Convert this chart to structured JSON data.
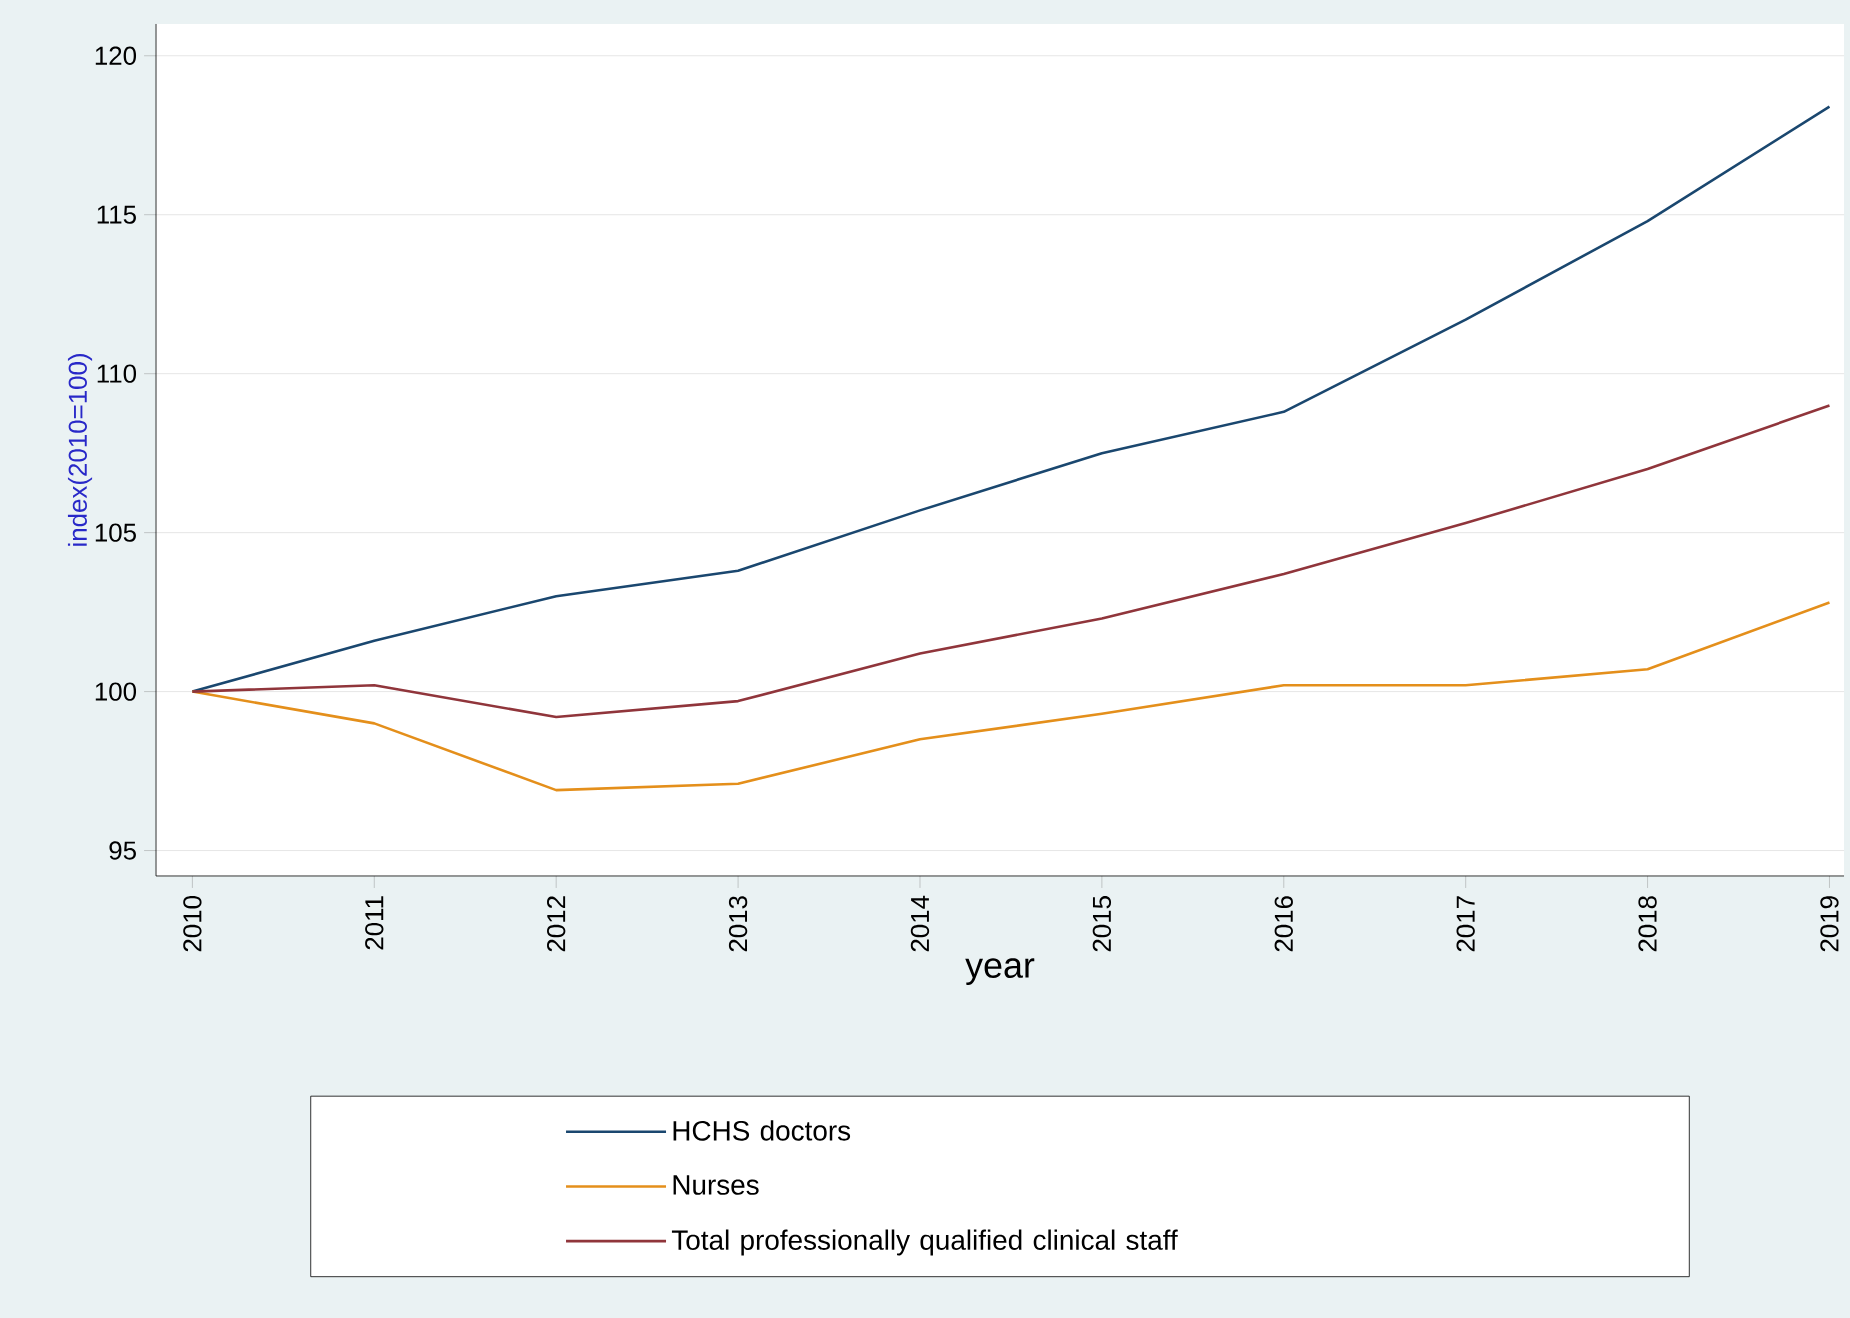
{
  "chart_data": {
    "type": "line",
    "xlabel": "year",
    "ylabel": "index(2010=100)",
    "x": [
      2010,
      2011,
      2012,
      2013,
      2014,
      2015,
      2016,
      2017,
      2018,
      2019
    ],
    "series": [
      {
        "name": "HCHS doctors",
        "color": "#1a476f",
        "values": [
          100,
          101.6,
          103.0,
          103.8,
          105.7,
          107.5,
          108.8,
          111.7,
          114.8,
          118.4
        ]
      },
      {
        "name": "Nurses",
        "color": "#e48f1b",
        "values": [
          100,
          99.0,
          96.9,
          97.1,
          98.5,
          99.3,
          100.2,
          100.2,
          100.7,
          102.8
        ]
      },
      {
        "name": "Total professionally qualified clinical staff",
        "color": "#90353b",
        "values": [
          100,
          100.2,
          99.2,
          99.7,
          101.2,
          102.3,
          103.7,
          105.3,
          107.0,
          109.0
        ]
      }
    ],
    "xlim": [
      2009.8,
      2019.08
    ],
    "ylim": [
      94.2,
      121.0
    ],
    "xticks": [
      2010,
      2011,
      2012,
      2013,
      2014,
      2015,
      2016,
      2017,
      2018,
      2019
    ],
    "yticks": [
      95,
      100,
      105,
      110,
      115,
      120
    ],
    "grid": "y",
    "legend": "bottom",
    "marker": "none",
    "line_style": "solid"
  }
}
